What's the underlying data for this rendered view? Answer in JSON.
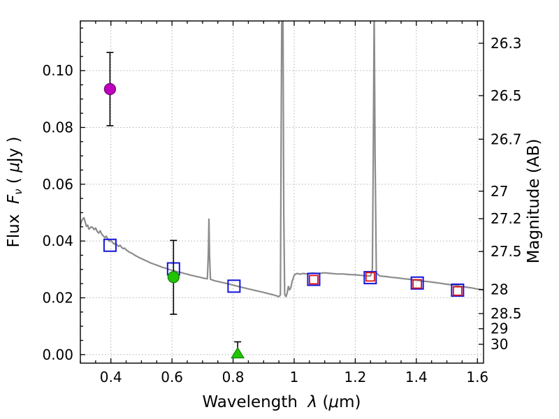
{
  "figure": {
    "background": "#ffffff"
  },
  "chart_data": {
    "type": "line",
    "title": "",
    "xlabel": "Wavelength  λ (μm)",
    "xlabel_parts": {
      "t1": "Wavelength  ",
      "symbol": "λ",
      "t2": " (",
      "mu": "μ",
      "t3": "m)"
    },
    "ylabel_left": "Flux  Fν ( μJy )",
    "ylabel_left_parts": {
      "t1": "Flux  ",
      "symbol": "F",
      "sub": "ν",
      "t2": " ( ",
      "mu": "μ",
      "t3": "Jy )"
    },
    "ylabel_right": "Magnitude (AB)",
    "xlim": [
      0.3,
      1.62
    ],
    "ylim_flux": [
      -0.003,
      0.1175
    ],
    "x_ticks": [
      0.4,
      0.6,
      0.8,
      1.0,
      1.2,
      1.4,
      1.6
    ],
    "x_tick_labels": [
      "0.4",
      "0.6",
      "0.8",
      "1",
      "1.2",
      "1.4",
      "1.6"
    ],
    "x_minor_step": 0.05,
    "y_ticks_left": [
      0.0,
      0.02,
      0.04,
      0.06,
      0.08,
      0.1
    ],
    "y_tick_labels_left": [
      "0.00",
      "0.02",
      "0.04",
      "0.06",
      "0.08",
      "0.10"
    ],
    "y_minor_step": 0.005,
    "y_ticks_right": [
      26.3,
      26.5,
      26.7,
      27,
      27.2,
      27.5,
      28,
      28.5,
      29,
      30
    ],
    "y_tick_labels_right": [
      "26.3",
      "26.5",
      "26.7",
      "27",
      "27.2",
      "27.5",
      "28",
      "28.5",
      "29",
      "30"
    ],
    "ab_zeropoint_ujy": 23.9,
    "grid": {
      "show": true,
      "color": "#b3b3b3",
      "style": "dotted"
    },
    "frame_color": "#000000",
    "series": [
      {
        "name": "model-spectrum",
        "kind": "line",
        "color": "#8c8c8c",
        "linewidth": 2.2,
        "points": [
          [
            0.3,
            0.0452
          ],
          [
            0.304,
            0.047
          ],
          [
            0.308,
            0.0478
          ],
          [
            0.312,
            0.0482
          ],
          [
            0.316,
            0.0466
          ],
          [
            0.32,
            0.0452
          ],
          [
            0.324,
            0.0456
          ],
          [
            0.328,
            0.0442
          ],
          [
            0.332,
            0.0446
          ],
          [
            0.336,
            0.045
          ],
          [
            0.34,
            0.0448
          ],
          [
            0.345,
            0.044
          ],
          [
            0.35,
            0.0446
          ],
          [
            0.355,
            0.0434
          ],
          [
            0.36,
            0.0428
          ],
          [
            0.365,
            0.0436
          ],
          [
            0.37,
            0.0424
          ],
          [
            0.375,
            0.0418
          ],
          [
            0.38,
            0.0412
          ],
          [
            0.385,
            0.0417
          ],
          [
            0.39,
            0.0406
          ],
          [
            0.395,
            0.0399
          ],
          [
            0.4,
            0.0403
          ],
          [
            0.405,
            0.0396
          ],
          [
            0.41,
            0.0389
          ],
          [
            0.415,
            0.0392
          ],
          [
            0.42,
            0.0386
          ],
          [
            0.425,
            0.0381
          ],
          [
            0.43,
            0.0385
          ],
          [
            0.435,
            0.0378
          ],
          [
            0.44,
            0.0373
          ],
          [
            0.445,
            0.0375
          ],
          [
            0.45,
            0.0369
          ],
          [
            0.46,
            0.0361
          ],
          [
            0.47,
            0.0356
          ],
          [
            0.48,
            0.0349
          ],
          [
            0.49,
            0.0343
          ],
          [
            0.5,
            0.0338
          ],
          [
            0.51,
            0.0333
          ],
          [
            0.52,
            0.0328
          ],
          [
            0.53,
            0.0323
          ],
          [
            0.54,
            0.0319
          ],
          [
            0.55,
            0.0315
          ],
          [
            0.56,
            0.0311
          ],
          [
            0.57,
            0.0307
          ],
          [
            0.58,
            0.0304
          ],
          [
            0.59,
            0.03
          ],
          [
            0.6,
            0.0297
          ],
          [
            0.61,
            0.0294
          ],
          [
            0.62,
            0.0291
          ],
          [
            0.63,
            0.0289
          ],
          [
            0.64,
            0.0286
          ],
          [
            0.65,
            0.0283
          ],
          [
            0.66,
            0.028
          ],
          [
            0.67,
            0.0278
          ],
          [
            0.68,
            0.0275
          ],
          [
            0.69,
            0.0273
          ],
          [
            0.7,
            0.027
          ],
          [
            0.71,
            0.0268
          ],
          [
            0.716,
            0.0267
          ],
          [
            0.719,
            0.036
          ],
          [
            0.721,
            0.0477
          ],
          [
            0.723,
            0.035
          ],
          [
            0.726,
            0.0265
          ],
          [
            0.74,
            0.026
          ],
          [
            0.76,
            0.0255
          ],
          [
            0.78,
            0.025
          ],
          [
            0.8,
            0.0245
          ],
          [
            0.82,
            0.0239
          ],
          [
            0.84,
            0.0234
          ],
          [
            0.86,
            0.0229
          ],
          [
            0.88,
            0.0224
          ],
          [
            0.9,
            0.0219
          ],
          [
            0.915,
            0.0215
          ],
          [
            0.93,
            0.0211
          ],
          [
            0.942,
            0.0207
          ],
          [
            0.95,
            0.0204
          ],
          [
            0.955,
            0.021
          ],
          [
            0.958,
            0.09
          ],
          [
            0.96,
            0.13
          ],
          [
            0.963,
            0.13
          ],
          [
            0.966,
            0.05
          ],
          [
            0.969,
            0.0212
          ],
          [
            0.973,
            0.0204
          ],
          [
            0.977,
            0.0216
          ],
          [
            0.981,
            0.024
          ],
          [
            0.985,
            0.0228
          ],
          [
            0.989,
            0.0236
          ],
          [
            0.993,
            0.0256
          ],
          [
            0.997,
            0.027
          ],
          [
            1.001,
            0.0281
          ],
          [
            1.01,
            0.0286
          ],
          [
            1.02,
            0.0283
          ],
          [
            1.03,
            0.0286
          ],
          [
            1.04,
            0.0284
          ],
          [
            1.05,
            0.0286
          ],
          [
            1.06,
            0.0287
          ],
          [
            1.08,
            0.0286
          ],
          [
            1.1,
            0.0288
          ],
          [
            1.12,
            0.0286
          ],
          [
            1.14,
            0.0284
          ],
          [
            1.16,
            0.0284
          ],
          [
            1.18,
            0.0282
          ],
          [
            1.2,
            0.0281
          ],
          [
            1.22,
            0.0279
          ],
          [
            1.24,
            0.0277
          ],
          [
            1.25,
            0.0277
          ],
          [
            1.256,
            0.03
          ],
          [
            1.259,
            0.07
          ],
          [
            1.262,
            0.122
          ],
          [
            1.265,
            0.07
          ],
          [
            1.269,
            0.0287
          ],
          [
            1.28,
            0.0277
          ],
          [
            1.3,
            0.0275
          ],
          [
            1.32,
            0.0272
          ],
          [
            1.34,
            0.027
          ],
          [
            1.36,
            0.0267
          ],
          [
            1.38,
            0.0265
          ],
          [
            1.4,
            0.0262
          ],
          [
            1.42,
            0.0259
          ],
          [
            1.44,
            0.0257
          ],
          [
            1.46,
            0.0254
          ],
          [
            1.48,
            0.0251
          ],
          [
            1.5,
            0.0248
          ],
          [
            1.52,
            0.0245
          ],
          [
            1.54,
            0.0242
          ],
          [
            1.56,
            0.0238
          ],
          [
            1.58,
            0.0235
          ],
          [
            1.6,
            0.0231
          ],
          [
            1.62,
            0.0228
          ]
        ]
      },
      {
        "name": "model-photometry-squares",
        "kind": "scatter",
        "marker": "square-open",
        "color": "#1414dc",
        "stroke_width": 2,
        "size": 17,
        "points": [
          [
            0.397,
            0.0385
          ],
          [
            0.605,
            0.0302
          ],
          [
            0.803,
            0.0241
          ],
          [
            1.064,
            0.0265
          ],
          [
            1.249,
            0.0271
          ],
          [
            1.403,
            0.0252
          ],
          [
            1.535,
            0.0227
          ]
        ]
      },
      {
        "name": "observed-photometry-squares",
        "kind": "scatter",
        "marker": "square-open",
        "color": "#dd1111",
        "stroke_width": 1.8,
        "size": 12,
        "points": [
          [
            1.064,
            0.0264
          ],
          [
            1.249,
            0.0274
          ],
          [
            1.403,
            0.0249
          ],
          [
            1.535,
            0.0224
          ]
        ]
      },
      {
        "name": "observed-u-band-point",
        "kind": "scatter",
        "marker": "circle",
        "color": "#bf00bf",
        "edge": "#6e006e",
        "size": 16,
        "points": [
          [
            0.397,
            0.0935
          ]
        ],
        "yerr_lo": [
          0.0129
        ],
        "yerr_hi": [
          0.0129
        ]
      },
      {
        "name": "observed-r-band-point",
        "kind": "scatter",
        "marker": "circle",
        "color": "#22c400",
        "edge": "#0d7a00",
        "size": 16,
        "points": [
          [
            0.605,
            0.0273
          ]
        ],
        "yerr_lo": [
          0.0131
        ],
        "yerr_hi": [
          0.0129
        ]
      },
      {
        "name": "upper-limit-triangle",
        "kind": "scatter",
        "marker": "triangle-up",
        "color": "#22c400",
        "edge": "#0d7a00",
        "size": 16,
        "points": [
          [
            0.815,
            0.0003
          ]
        ],
        "yerr_lo": [
          0.0
        ],
        "yerr_hi": [
          0.0042
        ]
      }
    ]
  }
}
